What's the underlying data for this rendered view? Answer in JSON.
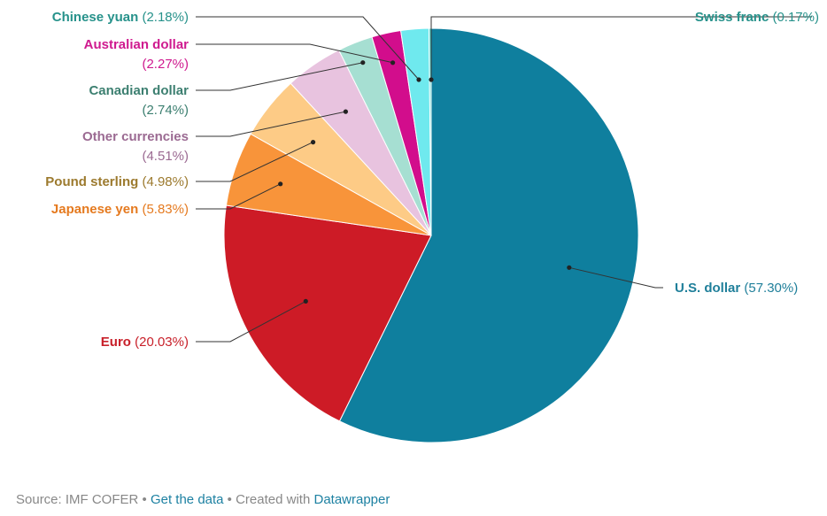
{
  "chart_data": {
    "type": "pie",
    "slices": [
      {
        "label": "U.S. dollar",
        "value_text": "(57.30%)",
        "value": 57.3,
        "color": "#0f7f9e",
        "text_color": "#1f7f9a"
      },
      {
        "label": "Euro",
        "value_text": "(20.03%)",
        "value": 20.03,
        "color": "#cd1b26",
        "text_color": "#c8202a"
      },
      {
        "label": "Japanese yen",
        "value_text": "(5.83%)",
        "value": 5.83,
        "color": "#f8943a",
        "text_color": "#e57a1f"
      },
      {
        "label": "Pound sterling",
        "value_text": "(4.98%)",
        "value": 4.98,
        "color": "#fdcb86",
        "text_color": "#9c7a2e"
      },
      {
        "label": "Other currencies",
        "value_text": "(4.51%)",
        "value": 4.51,
        "color": "#e8c3df",
        "text_color": "#9b6a92"
      },
      {
        "label": "Canadian dollar",
        "value_text": "(2.74%)",
        "value": 2.74,
        "color": "#a6dfd2",
        "text_color": "#3c7f70"
      },
      {
        "label": "Australian dollar",
        "value_text": "(2.27%)",
        "value": 2.27,
        "color": "#d20d8c",
        "text_color": "#cf1a8f"
      },
      {
        "label": "Chinese yuan",
        "value_text": "(2.18%)",
        "value": 2.18,
        "color": "#6fe9ee",
        "text_color": "#27928b"
      },
      {
        "label": "Swiss franc",
        "value_text": "(0.17%)",
        "value": 0.17,
        "color": "#5ad3cc",
        "text_color": "#27928b"
      }
    ]
  },
  "footer": {
    "source": "Source: IMF COFER",
    "sep1": " • ",
    "get_data": "Get the data",
    "sep2": " • Created with ",
    "tool": "Datawrapper"
  }
}
